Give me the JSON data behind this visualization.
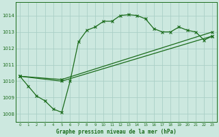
{
  "title": "Graphe pression niveau de la mer (hPa)",
  "bg_color": "#cce8df",
  "grid_color": "#aacfc6",
  "line_color": "#1a6b1a",
  "xlim": [
    -0.5,
    23.5
  ],
  "ylim": [
    1007.5,
    1014.8
  ],
  "yticks": [
    1008,
    1009,
    1010,
    1011,
    1012,
    1013,
    1014
  ],
  "xticks": [
    0,
    1,
    2,
    3,
    4,
    5,
    6,
    7,
    8,
    9,
    10,
    11,
    12,
    13,
    14,
    15,
    16,
    17,
    18,
    19,
    20,
    21,
    22,
    23
  ],
  "series1_x": [
    0,
    1,
    2,
    3,
    4,
    5,
    6,
    7,
    8,
    9,
    10,
    11,
    12,
    13,
    14,
    15,
    16,
    17,
    18,
    19,
    20,
    21,
    22,
    23
  ],
  "series1_y": [
    1010.3,
    1009.7,
    1009.1,
    1008.8,
    1008.3,
    1008.1,
    1010.0,
    1012.4,
    1013.1,
    1013.3,
    1013.65,
    1013.65,
    1014.0,
    1014.05,
    1014.0,
    1013.8,
    1013.2,
    1013.0,
    1013.0,
    1013.3,
    1013.1,
    1013.0,
    1012.5,
    1012.75
  ],
  "series2_x": [
    0,
    5,
    23
  ],
  "series2_y": [
    1010.3,
    1010.1,
    1013.0
  ],
  "series3_x": [
    0,
    5,
    23
  ],
  "series3_y": [
    1010.3,
    1010.0,
    1012.75
  ],
  "figwidth": 3.2,
  "figheight": 2.0,
  "dpi": 100
}
